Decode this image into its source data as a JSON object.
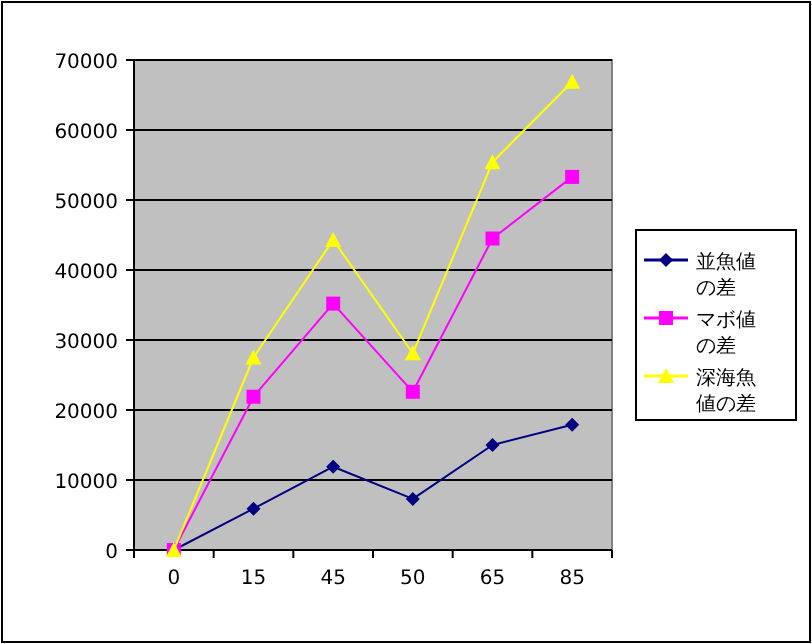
{
  "chart_data": {
    "type": "line",
    "categories": [
      "0",
      "15",
      "45",
      "50",
      "65",
      "85"
    ],
    "series": [
      {
        "name": "並魚値の差",
        "color": "#000080",
        "marker": "diamond",
        "values": [
          0,
          5900,
          11900,
          7300,
          15000,
          17900
        ]
      },
      {
        "name": "マボ値の差",
        "color": "#ff00ff",
        "marker": "square",
        "values": [
          0,
          21900,
          35200,
          22600,
          44500,
          53300
        ]
      },
      {
        "name": "深海魚値の差",
        "color": "#ffff00",
        "marker": "triangle",
        "values": [
          0,
          27500,
          44300,
          28100,
          55400,
          66900
        ]
      }
    ],
    "ylim": [
      0,
      70000
    ],
    "yticks": [
      0,
      10000,
      20000,
      30000,
      40000,
      50000,
      60000,
      70000
    ],
    "grid": "y",
    "legend": "right"
  }
}
